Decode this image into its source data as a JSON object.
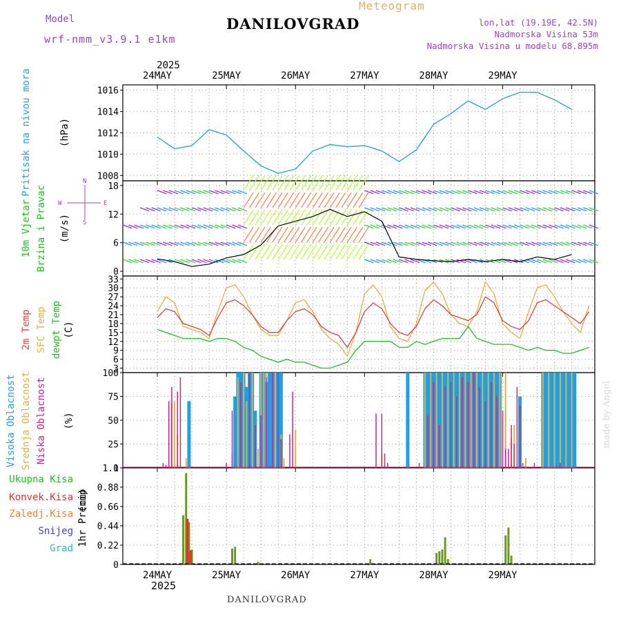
{
  "header": {
    "model_label": "Model",
    "model_name": "wrf-nmm_v3.9.1 e1km",
    "title": "DANILOVGRAD",
    "meteogram_label": "Meteogram",
    "lonlat": "lon,lat (19.19E, 42.5N)",
    "elevation": "Nadmorska Visina 53m",
    "model_elevation": "Nadmorska Visina u modelu 68.895m"
  },
  "footer": {
    "station": "DANILOVGRAD",
    "credit": "made by Angel"
  },
  "colors": {
    "pressure": "#29a3e0",
    "temp2m": "#e04040",
    "sfc": "#e0b040",
    "dewpt": "#20c020",
    "high_cloud": "#1ea0e8",
    "mid_cloud": "#e0b040",
    "low_cloud": "#d0208a",
    "precip_total": "#6a9a20",
    "precip_conv": "#e03030"
  },
  "time_axis": {
    "year": "2025",
    "days": [
      "24MAY",
      "25MAY",
      "26MAY",
      "27MAY",
      "28MAY",
      "29MAY"
    ]
  },
  "chart_data": [
    {
      "type": "line",
      "name": "pressure",
      "ylabel": "Pritisak na nivou mora",
      "unit": "(hPa)",
      "ylim": [
        1007.5,
        1016.5
      ],
      "yticks": [
        1008,
        1010,
        1012,
        1014,
        1016
      ],
      "grid": true,
      "x_hours": [
        0,
        6,
        12,
        18,
        24,
        30,
        36,
        42,
        48,
        54,
        60,
        66,
        72,
        78,
        84,
        90,
        96,
        102,
        108,
        114,
        120,
        126,
        132,
        138,
        144
      ],
      "series": [
        {
          "values": [
            1011.6,
            1010.5,
            1010.8,
            1012.3,
            1011.8,
            1010.3,
            1008.9,
            1008.2,
            1008.6,
            1010.3,
            1010.9,
            1010.7,
            1010.8,
            1010.3,
            1009.3,
            1010.4,
            1012.8,
            1013.8,
            1015.0,
            1014.2,
            1015.2,
            1015.8,
            1015.8,
            1015.1,
            1014.2
          ]
        }
      ]
    },
    {
      "type": "line",
      "name": "wind",
      "ylabel": "10m Vjetar",
      "ylabel2": "Brzina i Pravac",
      "unit": "(m/s)",
      "direction_legend": [
        "W",
        "E",
        "N",
        "S"
      ],
      "ylim": [
        -1,
        19
      ],
      "yticks": [
        0,
        6,
        12,
        18
      ],
      "grid": true,
      "x_hours": [
        0,
        6,
        12,
        18,
        24,
        30,
        36,
        42,
        48,
        54,
        60,
        66,
        72,
        78,
        84,
        90,
        96,
        102,
        108,
        114,
        120,
        126,
        132,
        138,
        144
      ],
      "series": [
        {
          "name": "speed",
          "values": [
            2.6,
            2.0,
            1.0,
            1.5,
            2.8,
            3.5,
            5.5,
            9.5,
            10.5,
            11.5,
            13.0,
            11.5,
            12.5,
            10.5,
            3.0,
            2.5,
            2.2,
            2.0,
            2.5,
            2.0,
            2.5,
            2.0,
            3.0,
            2.5,
            3.5
          ]
        }
      ]
    },
    {
      "type": "line",
      "name": "temperature",
      "ylabels": [
        "2m Temp",
        "SFC Temp",
        "dewpt Temp"
      ],
      "unit": "(C)",
      "ylim": [
        1.5,
        34
      ],
      "yticks": [
        3,
        6,
        9,
        12,
        15,
        18,
        21,
        24,
        27,
        30,
        33
      ],
      "grid": true,
      "x_hours": [
        0,
        3,
        6,
        9,
        12,
        15,
        18,
        21,
        24,
        27,
        30,
        33,
        36,
        39,
        42,
        45,
        48,
        51,
        54,
        57,
        60,
        63,
        66,
        69,
        72,
        75,
        78,
        81,
        84,
        87,
        90,
        93,
        96,
        99,
        102,
        105,
        108,
        111,
        114,
        117,
        120,
        123,
        126,
        129,
        132,
        135,
        138,
        141,
        144,
        147,
        150
      ],
      "series": [
        {
          "name": "2m Temp",
          "values": [
            20,
            23,
            22,
            18,
            17,
            16,
            14,
            20,
            25,
            26,
            24,
            21,
            17,
            15,
            15,
            19,
            22,
            23,
            21,
            17,
            15,
            14,
            10,
            15,
            22,
            25,
            23,
            18,
            15,
            14,
            17,
            23,
            26,
            24,
            21,
            20,
            19,
            21,
            27,
            25,
            19,
            17,
            16,
            19,
            25,
            26,
            24,
            22,
            20,
            18,
            22
          ]
        },
        {
          "name": "SFC Temp",
          "values": [
            22,
            27,
            25,
            17,
            16,
            15,
            13,
            22,
            30,
            31,
            27,
            21,
            16,
            14,
            14,
            19,
            25,
            26,
            22,
            16,
            13,
            11,
            7,
            15,
            28,
            31,
            27,
            17,
            13,
            12,
            18,
            29,
            32,
            28,
            21,
            18,
            17,
            22,
            32,
            28,
            18,
            15,
            13,
            22,
            30,
            31,
            27,
            22,
            18,
            15,
            24
          ]
        },
        {
          "name": "dewpt Temp",
          "values": [
            16,
            15,
            14,
            13,
            13,
            13,
            12,
            13,
            13,
            12,
            10,
            9,
            7,
            6,
            5,
            6,
            5,
            5,
            4,
            3,
            3,
            4,
            5,
            9,
            12,
            12,
            12,
            12,
            10,
            10,
            12,
            11,
            12,
            13,
            13,
            13,
            17,
            13,
            12,
            11,
            11,
            11,
            10,
            9,
            10,
            9,
            9,
            8,
            8,
            9,
            10
          ]
        }
      ]
    },
    {
      "type": "bar",
      "name": "cloud",
      "ylabels": [
        "Visoka Oblacnost",
        "Srednja Oblacnost",
        "Niska Oblacnost"
      ],
      "unit": "(%)",
      "ylim": [
        0,
        100
      ],
      "yticks": [
        0,
        25,
        50,
        75,
        100
      ],
      "grid": true,
      "series": [
        {
          "name": "Visoka Oblacnost",
          "x_hours": [
            11,
            27,
            28,
            29,
            30,
            31,
            32,
            33,
            34,
            36,
            37,
            38,
            39,
            40,
            41,
            42,
            43,
            87,
            93,
            94,
            95,
            96,
            97,
            98,
            99,
            100,
            101,
            102,
            103,
            104,
            105,
            106,
            107,
            108,
            109,
            110,
            111,
            112,
            113,
            114,
            115,
            116,
            117,
            118,
            119,
            126,
            134,
            135,
            136,
            137,
            138,
            139,
            140,
            141,
            142,
            143,
            144,
            145
          ],
          "values": [
            70,
            75,
            100,
            100,
            100,
            85,
            100,
            100,
            60,
            100,
            100,
            90,
            100,
            100,
            100,
            100,
            100,
            100,
            100,
            100,
            100,
            100,
            100,
            100,
            100,
            100,
            100,
            100,
            100,
            100,
            100,
            100,
            100,
            100,
            100,
            100,
            100,
            100,
            100,
            100,
            100,
            100,
            100,
            100,
            100,
            75,
            100,
            100,
            100,
            100,
            100,
            100,
            100,
            100,
            100,
            100,
            100,
            100
          ]
        },
        {
          "name": "Srednja Oblacnost",
          "x_hours": [
            5,
            6,
            7,
            10,
            26,
            28,
            30,
            31,
            33,
            35,
            36,
            37,
            38,
            41,
            43,
            44,
            48,
            78,
            93,
            95,
            97,
            99,
            101,
            103,
            105,
            107,
            109,
            111,
            113,
            115,
            117,
            119,
            121,
            123,
            124,
            128,
            134,
            136,
            138,
            140,
            142,
            144
          ],
          "values": [
            68,
            70,
            35,
            10,
            15,
            95,
            100,
            70,
            100,
            20,
            100,
            100,
            100,
            100,
            35,
            10,
            40,
            15,
            100,
            100,
            100,
            100,
            100,
            100,
            100,
            100,
            100,
            100,
            100,
            100,
            100,
            100,
            100,
            30,
            45,
            10,
            100,
            100,
            100,
            100,
            100,
            100
          ]
        },
        {
          "name": "Niska Oblacnost",
          "x_hours": [
            2,
            3,
            4,
            5,
            7,
            8,
            24,
            26,
            29,
            32,
            34,
            36,
            38,
            40,
            42,
            43,
            46,
            47,
            76,
            78,
            79,
            80,
            91,
            94,
            96,
            98,
            100,
            102,
            104,
            106,
            108,
            110,
            112,
            114,
            116,
            118,
            120,
            121,
            122,
            123,
            124,
            125,
            126,
            127,
            131,
            140
          ],
          "values": [
            5,
            3,
            70,
            85,
            80,
            95,
            5,
            60,
            90,
            100,
            45,
            55,
            95,
            100,
            100,
            30,
            35,
            80,
            57,
            57,
            15,
            5,
            5,
            55,
            90,
            45,
            85,
            90,
            75,
            95,
            90,
            100,
            85,
            70,
            90,
            75,
            60,
            20,
            20,
            45,
            25,
            85,
            65,
            5,
            5,
            5
          ]
        }
      ]
    },
    {
      "type": "bar",
      "name": "precip",
      "ylabel": "1hr Precip",
      "unit": "(mm)",
      "legend": [
        "Ukupna Kisa",
        "Konvek.Kisa",
        "Zaledj.Kisa",
        "Snijeg",
        "Grad"
      ],
      "ylim": [
        0,
        1.1
      ],
      "yticks": [
        0,
        0.22,
        0.44,
        0.66,
        0.88,
        1.1
      ],
      "grid": true,
      "series": [
        {
          "name": "Ukupna Kisa",
          "x_hours": [
            9,
            10,
            11,
            12,
            26,
            27,
            35,
            74,
            97,
            98,
            99,
            100,
            101,
            121,
            122,
            123
          ],
          "values": [
            0.56,
            1.04,
            0.48,
            0.17,
            0.18,
            0.2,
            0.03,
            0.06,
            0.13,
            0.15,
            0.17,
            0.31,
            0.06,
            0.33,
            0.42,
            0.1
          ]
        },
        {
          "name": "Konvek.Kisa",
          "x_hours": [
            10,
            11
          ],
          "values": [
            0.52,
            0.16
          ]
        }
      ]
    }
  ]
}
